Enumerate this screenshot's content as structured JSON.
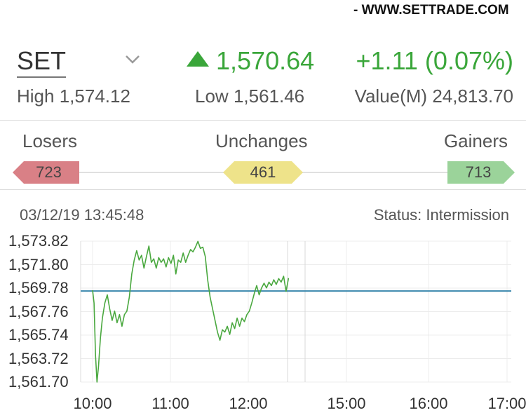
{
  "source": "- WWW.SETTRADE.COM",
  "index": {
    "name": "SET",
    "price": "1,570.64",
    "change": "+1.11 (0.07%)",
    "high_label": "High",
    "high": "1,574.12",
    "low_label": "Low",
    "low": "1,561.46",
    "value_label": "Value(M)",
    "value": "24,813.70",
    "icon": "triangle-up-icon",
    "up_color": "#3aa63a"
  },
  "breadth": {
    "losers_label": "Losers",
    "unchanges_label": "Unchanges",
    "gainers_label": "Gainers",
    "losers": "723",
    "unchanges": "461",
    "gainers": "713",
    "colors": {
      "losers": "#d98086",
      "unchanges": "#eee38a",
      "gainers": "#9bd39a"
    }
  },
  "session": {
    "timestamp": "03/12/19 13:45:48",
    "status": "Status: Intermission"
  },
  "chart_data": {
    "type": "line",
    "yticks": [
      "1,573.82",
      "1,571.80",
      "1,569.78",
      "1,567.76",
      "1,565.74",
      "1,563.72",
      "1,561.70"
    ],
    "xticks": [
      "10:00",
      "11:00",
      "12:00",
      "15:00",
      "16:00",
      "17:00"
    ],
    "ylim": [
      1561.7,
      1573.82
    ],
    "previous_close": 1569.53,
    "line_color": "#4aa83f",
    "ref_color": "#3a87ad",
    "grid": true,
    "series": [
      {
        "values": [
          [
            0,
            1569.6
          ],
          [
            0.03,
            1568.5
          ],
          [
            0.06,
            1564.0
          ],
          [
            0.09,
            1561.7
          ],
          [
            0.12,
            1563.0
          ],
          [
            0.16,
            1565.5
          ],
          [
            0.2,
            1567.2
          ],
          [
            0.25,
            1568.5
          ],
          [
            0.3,
            1569.2
          ],
          [
            0.35,
            1568.0
          ],
          [
            0.4,
            1567.0
          ],
          [
            0.45,
            1567.8
          ],
          [
            0.5,
            1566.8
          ],
          [
            0.55,
            1567.5
          ],
          [
            0.6,
            1566.5
          ],
          [
            0.65,
            1567.5
          ],
          [
            0.7,
            1567.8
          ],
          [
            0.75,
            1569.0
          ],
          [
            0.8,
            1571.0
          ],
          [
            0.85,
            1572.2
          ],
          [
            0.9,
            1573.0
          ],
          [
            0.95,
            1572.2
          ],
          [
            1.0,
            1572.6
          ],
          [
            1.05,
            1571.5
          ],
          [
            1.1,
            1572.5
          ],
          [
            1.15,
            1573.4
          ],
          [
            1.2,
            1572.0
          ],
          [
            1.25,
            1572.3
          ],
          [
            1.3,
            1571.5
          ],
          [
            1.35,
            1572.4
          ],
          [
            1.4,
            1572.0
          ],
          [
            1.45,
            1572.3
          ],
          [
            1.5,
            1571.6
          ],
          [
            1.55,
            1572.4
          ],
          [
            1.6,
            1571.9
          ],
          [
            1.65,
            1572.6
          ],
          [
            1.7,
            1571.0
          ],
          [
            1.75,
            1572.2
          ],
          [
            1.8,
            1572.0
          ],
          [
            1.85,
            1572.8
          ],
          [
            1.9,
            1572.0
          ],
          [
            1.95,
            1572.6
          ],
          [
            2.0,
            1573.1
          ],
          [
            2.05,
            1572.9
          ],
          [
            2.1,
            1573.3
          ],
          [
            2.15,
            1573.8
          ],
          [
            2.2,
            1573.2
          ],
          [
            2.25,
            1573.3
          ],
          [
            2.3,
            1572.5
          ],
          [
            2.35,
            1570.5
          ],
          [
            2.4,
            1569.0
          ],
          [
            2.45,
            1568.0
          ],
          [
            2.5,
            1567.0
          ],
          [
            2.55,
            1566.0
          ],
          [
            2.6,
            1565.3
          ],
          [
            2.65,
            1566.2
          ],
          [
            2.7,
            1566.0
          ],
          [
            2.75,
            1566.5
          ],
          [
            2.8,
            1565.8
          ],
          [
            2.85,
            1566.8
          ],
          [
            2.9,
            1566.3
          ],
          [
            2.95,
            1567.2
          ],
          [
            3.0,
            1566.5
          ],
          [
            3.05,
            1567.2
          ],
          [
            3.1,
            1566.9
          ],
          [
            3.15,
            1567.5
          ],
          [
            3.2,
            1567.8
          ],
          [
            3.25,
            1568.5
          ],
          [
            3.3,
            1569.3
          ],
          [
            3.35,
            1570.0
          ],
          [
            3.4,
            1569.2
          ],
          [
            3.45,
            1569.8
          ],
          [
            3.5,
            1570.2
          ],
          [
            3.55,
            1569.8
          ],
          [
            3.6,
            1570.3
          ],
          [
            3.65,
            1570.0
          ],
          [
            3.7,
            1570.5
          ],
          [
            3.75,
            1570.1
          ],
          [
            3.8,
            1570.6
          ],
          [
            3.85,
            1570.3
          ],
          [
            3.9,
            1570.8
          ],
          [
            3.95,
            1569.5
          ],
          [
            4.0,
            1570.64
          ]
        ]
      }
    ]
  }
}
